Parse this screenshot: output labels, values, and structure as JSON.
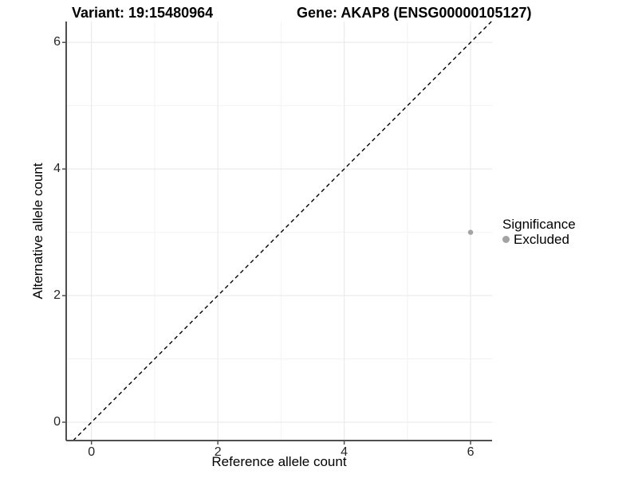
{
  "chart_data": {
    "type": "scatter",
    "titles": {
      "left": "Variant: 19:15480964",
      "right": "Gene: AKAP8 (ENSG00000105127)"
    },
    "xlabel": "Reference allele count",
    "ylabel": "Alternative allele count",
    "x_ticks": [
      0,
      2,
      4,
      6
    ],
    "y_ticks": [
      0,
      2,
      4,
      6
    ],
    "x_minor_ticks": [
      1,
      3,
      5
    ],
    "y_minor_ticks": [
      1,
      3,
      5
    ],
    "xlim": [
      -0.4,
      6.34
    ],
    "ylim": [
      -0.29,
      6.33
    ],
    "grid": true,
    "identity_line": {
      "style": "dashed",
      "equation": "y = x",
      "color": "#000000"
    },
    "series": [
      {
        "name": "Excluded",
        "points": [
          {
            "x": 6,
            "y": 3
          }
        ]
      }
    ],
    "legend": {
      "title": "Significance",
      "position": "right",
      "items": [
        {
          "label": "Excluded",
          "color": "#a3a3a3"
        }
      ]
    },
    "colors": {
      "background": "#ffffff",
      "grid_major": "#e7e7e7",
      "grid_minor": "#f2f2f2",
      "axis_line": "#4f4f4f",
      "tick_mark": "#4f4f4f",
      "point": "#a3a3a3"
    }
  }
}
